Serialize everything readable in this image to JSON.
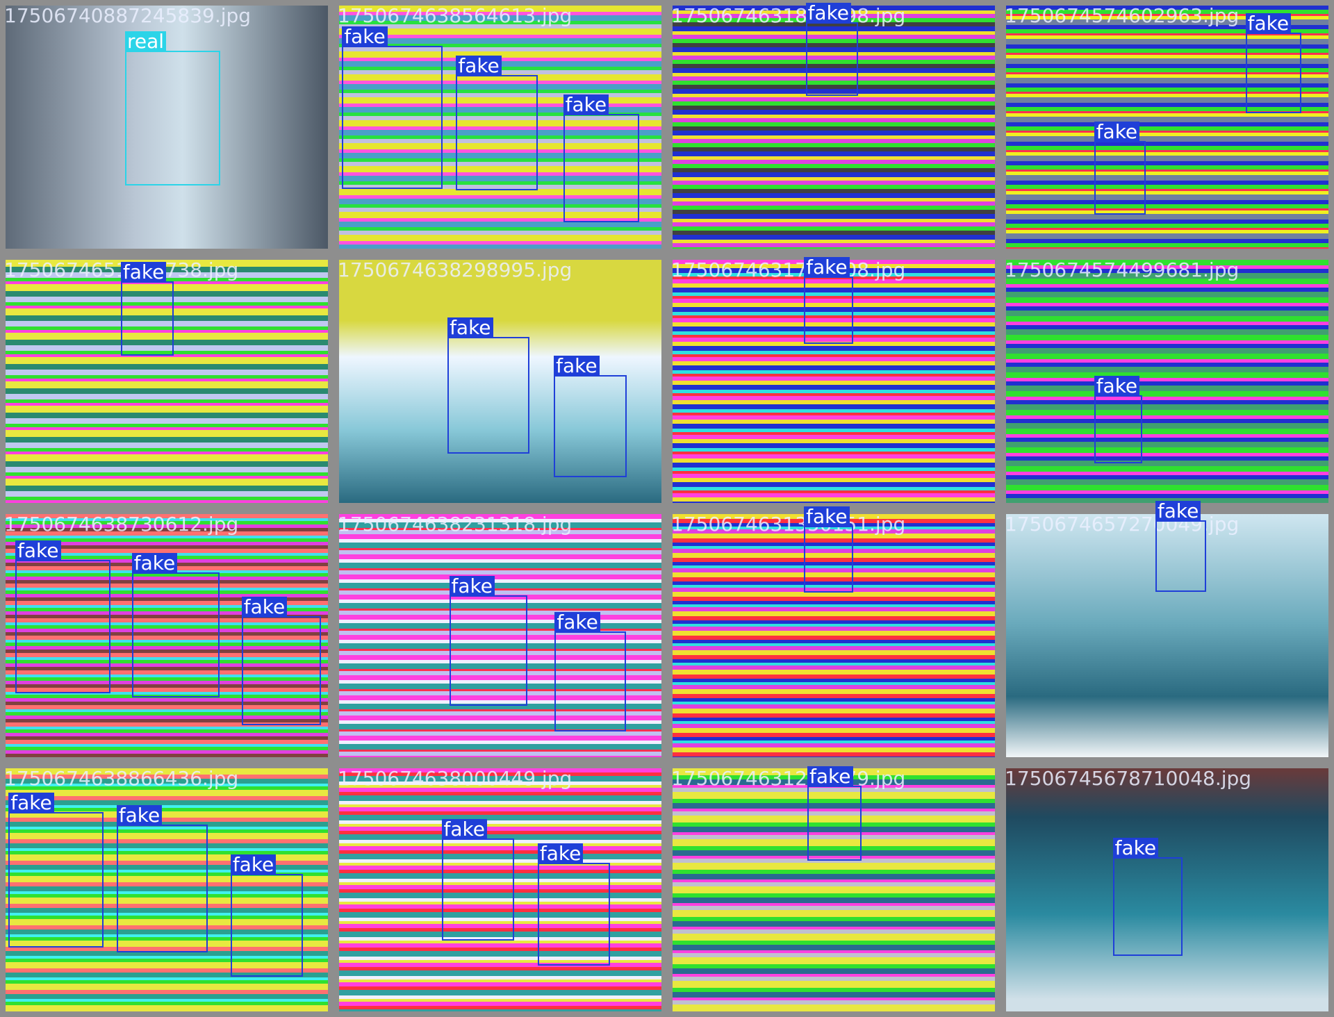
{
  "tiles": [
    {
      "filename": "17506740887245839.jpg",
      "boxes": [
        {
          "label": "real"
        }
      ]
    },
    {
      "filename": "1750674638564613.jpg",
      "boxes": [
        {
          "label": "fake"
        },
        {
          "label": "fake"
        },
        {
          "label": "fake"
        }
      ]
    },
    {
      "filename": "1750674631838198.jpg",
      "boxes": [
        {
          "label": "fake"
        }
      ]
    },
    {
      "filename": "1750674574602963.jpg",
      "boxes": [
        {
          "label": "fake"
        },
        {
          "label": "fake"
        }
      ]
    },
    {
      "filename": "1750674651821738.jpg",
      "boxes": [
        {
          "label": "fake"
        }
      ]
    },
    {
      "filename": "1750674638298995.jpg",
      "boxes": [
        {
          "label": "fake"
        },
        {
          "label": "fake"
        }
      ]
    },
    {
      "filename": "1750674631798808.jpg",
      "boxes": [
        {
          "label": "fake"
        }
      ]
    },
    {
      "filename": "1750674574499681.jpg",
      "boxes": [
        {
          "label": "fake"
        }
      ]
    },
    {
      "filename": "1750674638730612.jpg",
      "boxes": [
        {
          "label": "fake"
        },
        {
          "label": "fake"
        },
        {
          "label": "fake"
        }
      ]
    },
    {
      "filename": "1750674638231318.jpg",
      "boxes": [
        {
          "label": "fake"
        },
        {
          "label": "fake"
        }
      ]
    },
    {
      "filename": "1750674631350151.jpg",
      "boxes": [
        {
          "label": "fake"
        }
      ]
    },
    {
      "filename": "1750674657270049.jpg",
      "boxes": [
        {
          "label": "fake"
        }
      ]
    },
    {
      "filename": "1750674638866436.jpg",
      "boxes": [
        {
          "label": "fake"
        },
        {
          "label": "fake"
        },
        {
          "label": "fake"
        }
      ]
    },
    {
      "filename": "1750674638000449.jpg",
      "boxes": [
        {
          "label": "fake"
        },
        {
          "label": "fake"
        }
      ]
    },
    {
      "filename": "1750674631299379.jpg",
      "boxes": [
        {
          "label": "fake"
        }
      ]
    },
    {
      "filename": "17506745678710048.jpg",
      "boxes": [
        {
          "label": "fake"
        }
      ]
    }
  ]
}
